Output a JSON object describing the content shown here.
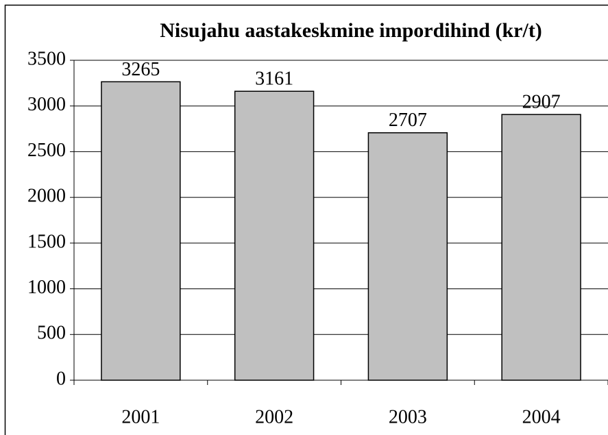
{
  "chart_data": {
    "type": "bar",
    "title": "Nisujahu aastakeskmine impordihind (kr/t)",
    "categories": [
      "2001",
      "2002",
      "2003",
      "2004"
    ],
    "values": [
      3265,
      3161,
      2707,
      2907
    ],
    "color": "#c0c0c0",
    "ylim": [
      0,
      3500
    ],
    "yticks": [
      0,
      500,
      1000,
      1500,
      2000,
      2500,
      3000,
      3500
    ],
    "grid": true
  }
}
